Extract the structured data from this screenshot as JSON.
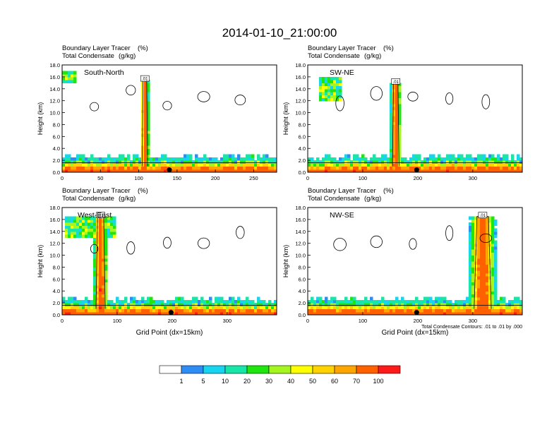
{
  "title": "2014-01-10_21:00:00",
  "panel_left_string": "Boundary Layer Tracer",
  "panel_right_string": "(%)",
  "panel_left_string2": "Total Condensate",
  "panel_right_string2": "(g/kg)",
  "ylabel": "Height (km)",
  "xlabel": "Grid Point (dx=15km)",
  "contour_note": "Total Condensate Contours: .01 to .01 by .000",
  "contour_label": ".01",
  "colorbar": {
    "colors": [
      "#ffffff",
      "#2e8df5",
      "#17d4f0",
      "#17e6a8",
      "#1ee60e",
      "#a5f520",
      "#ffff00",
      "#ffd200",
      "#ffa500",
      "#ff6000",
      "#ff1a1a"
    ],
    "labels": [
      "1",
      "5",
      "10",
      "20",
      "30",
      "40",
      "50",
      "60",
      "70",
      "100"
    ]
  },
  "chart_data": [
    {
      "type": "heatmap",
      "name": "South-North",
      "xlim": [
        0,
        280
      ],
      "ylim": [
        0,
        18
      ],
      "xticks": [
        "0",
        "50",
        "100",
        "150",
        "200",
        "250"
      ],
      "yticks": [
        "0.0",
        "2.0",
        "4.0",
        "6.0",
        "8.0",
        "10.0",
        "12.0",
        "14.0",
        "16.0",
        "18.0"
      ],
      "marker_x": 140,
      "tower": {
        "x": 108,
        "top": 15.5,
        "width": 6
      },
      "anvil": {
        "xmin": 0,
        "xmax": 20,
        "zmin": 15,
        "zmax": 17
      }
    },
    {
      "type": "heatmap",
      "name": "SW-NE",
      "xlim": [
        0,
        390
      ],
      "ylim": [
        0,
        18
      ],
      "xticks": [
        "0",
        "100",
        "200",
        "300"
      ],
      "yticks": [
        "0.0",
        "2.0",
        "4.0",
        "6.0",
        "8.0",
        "10.0",
        "12.0",
        "14.0",
        "16.0",
        "18.0"
      ],
      "marker_x": 198,
      "tower": {
        "x": 160,
        "top": 15.0,
        "width": 10
      },
      "anvil": {
        "xmin": 20,
        "xmax": 60,
        "zmin": 12,
        "zmax": 16
      }
    },
    {
      "type": "heatmap",
      "name": "West-East",
      "xlim": [
        0,
        390
      ],
      "ylim": [
        0,
        18
      ],
      "xticks": [
        "0",
        "100",
        "200",
        "300"
      ],
      "yticks": [
        "0.0",
        "2.0",
        "4.0",
        "6.0",
        "8.0",
        "10.0",
        "12.0",
        "14.0",
        "16.0",
        "18.0"
      ],
      "marker_x": 198,
      "tower": {
        "x": 70,
        "top": 16.5,
        "width": 14
      },
      "anvil": {
        "xmin": 5,
        "xmax": 100,
        "zmin": 13,
        "zmax": 16.5
      }
    },
    {
      "type": "heatmap",
      "name": "NW-SE",
      "xlim": [
        0,
        390
      ],
      "ylim": [
        0,
        18
      ],
      "xticks": [
        "0",
        "100",
        "200",
        "300"
      ],
      "yticks": [
        "0.0",
        "2.0",
        "4.0",
        "6.0",
        "8.0",
        "10.0",
        "12.0",
        "14.0",
        "16.0",
        "18.0"
      ],
      "marker_x": 198,
      "tower": {
        "x": 318,
        "top": 16.5,
        "width": 26
      },
      "anvil": {
        "xmin": 300,
        "xmax": 336,
        "zmin": 14,
        "zmax": 16.5
      }
    }
  ]
}
